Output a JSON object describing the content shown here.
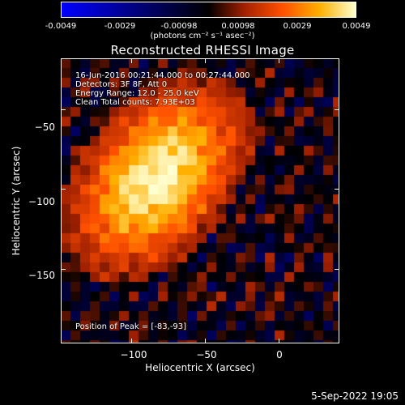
{
  "colorbar": {
    "tick_labels": [
      "-0.0049",
      "-0.0029",
      "-0.00098",
      "0.00098",
      "0.0029",
      "0.0049"
    ],
    "tick_values": [
      -0.0049,
      -0.0029,
      -0.00098,
      0.00098,
      0.0029,
      0.0049
    ],
    "range": [
      -0.0049,
      0.0049
    ],
    "units": "(photons cm⁻² s⁻¹ asec⁻²)",
    "colors": [
      "#0000ff",
      "#000000",
      "#a02000",
      "#ff5000",
      "#ffb000",
      "#ffffd0"
    ]
  },
  "chart_data": {
    "type": "heatmap",
    "title": "Reconstructed RHESSI Image",
    "xlabel": "Heliocentric X (arcsec)",
    "ylabel": "Heliocentric Y (arcsec)",
    "xlim": [
      -148,
      41
    ],
    "ylim": [
      -197,
      -18
    ],
    "xticks": [
      -100,
      -50,
      0
    ],
    "xtick_labels": [
      "−100",
      "−50",
      "0"
    ],
    "yticks": [
      -50,
      -100,
      -150
    ],
    "ytick_labels": [
      "−50",
      "−100",
      "−150"
    ],
    "peak": [
      -83,
      -93
    ],
    "annotations": [
      "16-Jun-2016 00:21:44.000 to 00:27:44.000",
      "Detectors: 3F 8F, Att 0",
      "Energy Range: 12.0 - 25.0 keV",
      "Clean    Total counts: 7.93E+03"
    ],
    "peak_label": "Position of Peak = [-83,-93]"
  },
  "footer": {
    "timestamp": "5-Sep-2022 19:05"
  }
}
